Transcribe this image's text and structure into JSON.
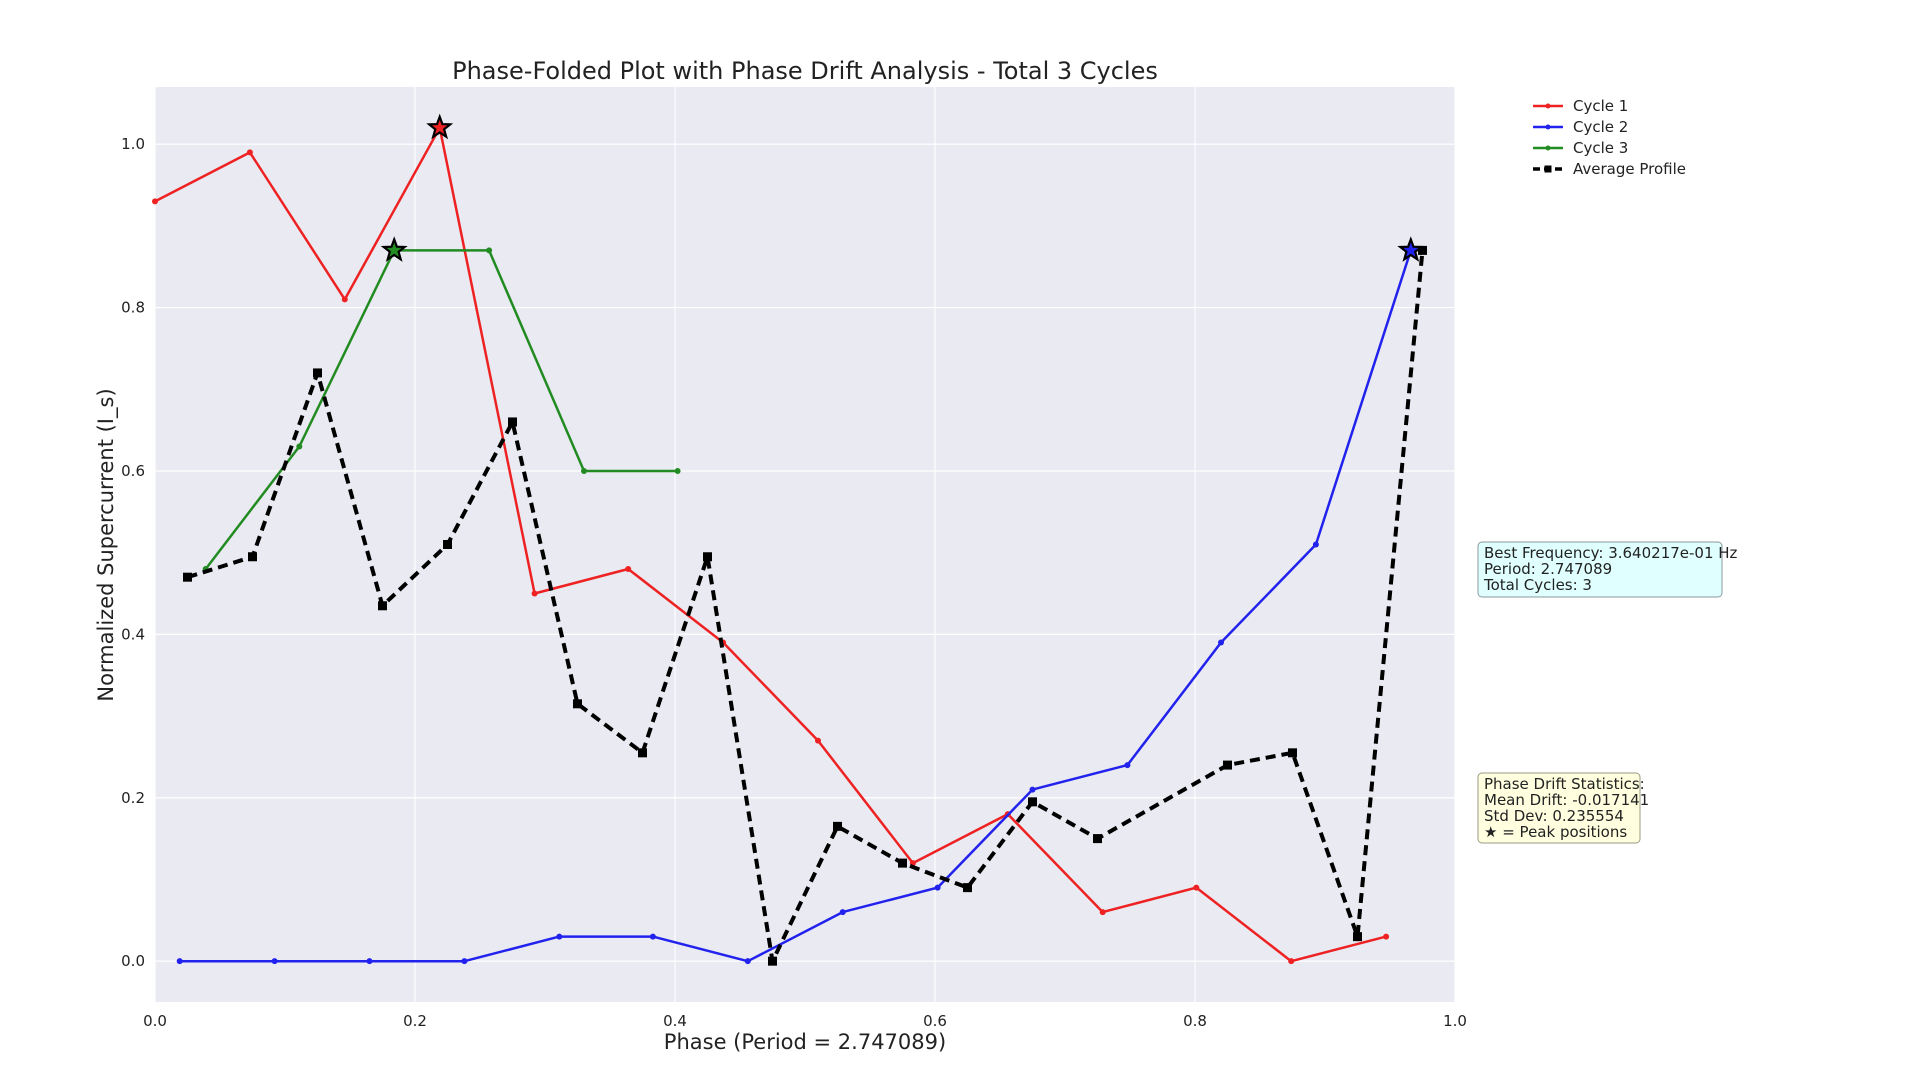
{
  "chart_data": {
    "type": "line",
    "title": "Phase-Folded Plot with Phase Drift Analysis - Total 3 Cycles",
    "xlabel": "Phase (Period = 2.747089)",
    "ylabel": "Normalized Supercurrent (I_s)",
    "xlim": [
      0.0,
      1.0
    ],
    "ylim": [
      -0.05,
      1.07
    ],
    "xticks": [
      "0.0",
      "0.2",
      "0.4",
      "0.6",
      "0.8",
      "1.0"
    ],
    "yticks": [
      "0.0",
      "0.2",
      "0.4",
      "0.6",
      "0.8",
      "1.0"
    ],
    "grid": true,
    "legend_position": "outside upper right",
    "series": [
      {
        "name": "Cycle 1",
        "color": "#ee2222",
        "marker": "dot",
        "x": [
          0.0,
          0.073,
          0.146,
          0.219,
          0.292,
          0.364,
          0.437,
          0.51,
          0.583,
          0.656,
          0.729,
          0.801,
          0.874,
          0.947
        ],
        "y": [
          0.93,
          0.99,
          0.81,
          1.02,
          0.45,
          0.48,
          0.39,
          0.27,
          0.12,
          0.18,
          0.06,
          0.09,
          0.0,
          0.03
        ]
      },
      {
        "name": "Cycle 2",
        "color": "#2222ee",
        "marker": "dot",
        "x": [
          0.019,
          0.092,
          0.165,
          0.238,
          0.311,
          0.383,
          0.456,
          0.529,
          0.602,
          0.675,
          0.748,
          0.82,
          0.893,
          0.966
        ],
        "y": [
          0.0,
          0.0,
          0.0,
          0.0,
          0.03,
          0.03,
          0.0,
          0.06,
          0.09,
          0.21,
          0.24,
          0.39,
          0.51,
          0.87
        ]
      },
      {
        "name": "Cycle 3",
        "color": "#228b22",
        "marker": "dot",
        "x": [
          0.039,
          0.111,
          0.184,
          0.257,
          0.33,
          0.402
        ],
        "y": [
          0.48,
          0.63,
          0.87,
          0.87,
          0.6,
          0.6
        ]
      },
      {
        "name": "Average Profile",
        "color": "#000000",
        "marker": "square",
        "dashed": true,
        "x": [
          0.025,
          0.075,
          0.125,
          0.175,
          0.225,
          0.275,
          0.325,
          0.375,
          0.425,
          0.475,
          0.525,
          0.575,
          0.625,
          0.675,
          0.725,
          0.775,
          0.825,
          0.875,
          0.925,
          0.975
        ],
        "y": [
          0.47,
          0.495,
          0.72,
          0.435,
          0.51,
          0.66,
          0.315,
          0.255,
          0.495,
          0.0,
          0.165,
          0.12,
          0.09,
          0.195,
          0.15,
          null,
          0.24,
          0.255,
          0.03,
          0.87
        ]
      }
    ],
    "peaks": [
      {
        "series": "Cycle 1",
        "x": 0.219,
        "y": 1.02
      },
      {
        "series": "Cycle 2",
        "x": 0.966,
        "y": 0.87
      },
      {
        "series": "Cycle 3",
        "x": 0.184,
        "y": 0.87
      }
    ],
    "annotations": {
      "frequency_box": [
        "Best Frequency: 3.640217e-01 Hz",
        "Period: 2.747089",
        "Total Cycles: 3"
      ],
      "drift_box": [
        "Phase Drift Statistics:",
        "Mean Drift: -0.017141",
        "Std Dev: 0.235554",
        "★ = Peak positions"
      ]
    }
  }
}
